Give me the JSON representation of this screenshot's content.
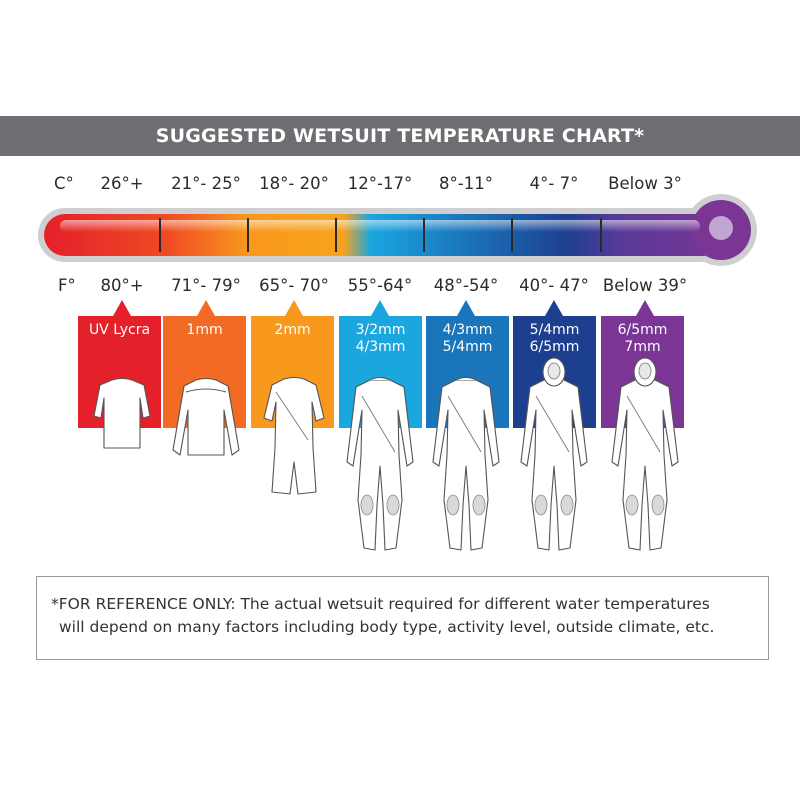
{
  "title": "SUGGESTED WETSUIT TEMPERATURE CHART*",
  "celsius_unit": "C°",
  "fahrenheit_unit": "F°",
  "ranges": [
    {
      "c": "26°+",
      "f": "80°+",
      "suit": [
        "UV Lycra"
      ],
      "color": "#e4202a",
      "figure": "rashguard"
    },
    {
      "c": "21°- 25°",
      "f": "71°- 79°",
      "suit": [
        "1mm"
      ],
      "color": "#f26a24",
      "figure": "longsleeve-top"
    },
    {
      "c": "18°- 20°",
      "f": "65°- 70°",
      "suit": [
        "2mm"
      ],
      "color": "#f8981d",
      "figure": "springsuit"
    },
    {
      "c": "12°-17°",
      "f": "55°-64°",
      "suit": [
        "3/2mm",
        "4/3mm"
      ],
      "color": "#1aa6df",
      "figure": "fullsuit"
    },
    {
      "c": "8°-11°",
      "f": "48°-54°",
      "suit": [
        "4/3mm",
        "5/4mm"
      ],
      "color": "#1b75bb",
      "figure": "fullsuit"
    },
    {
      "c": "4°- 7°",
      "f": "40°- 47°",
      "suit": [
        "5/4mm",
        "6/5mm"
      ],
      "color": "#1d3f8f",
      "figure": "hooded-fullsuit"
    },
    {
      "c": "Below 3°",
      "f": "Below 39°",
      "suit": [
        "6/5mm",
        "7mm"
      ],
      "color": "#7a3595",
      "figure": "hooded-fullsuit"
    }
  ],
  "thermometer_colors": [
    "#e4202a",
    "#f26a24",
    "#f8981d",
    "#1aa6df",
    "#1b75bb",
    "#1d3f8f",
    "#7a3595"
  ],
  "footnote": {
    "line1": "*FOR REFERENCE ONLY: The actual wetsuit required for different water temperatures",
    "line2": "will depend on many factors including body type, activity level, outside climate, etc."
  }
}
